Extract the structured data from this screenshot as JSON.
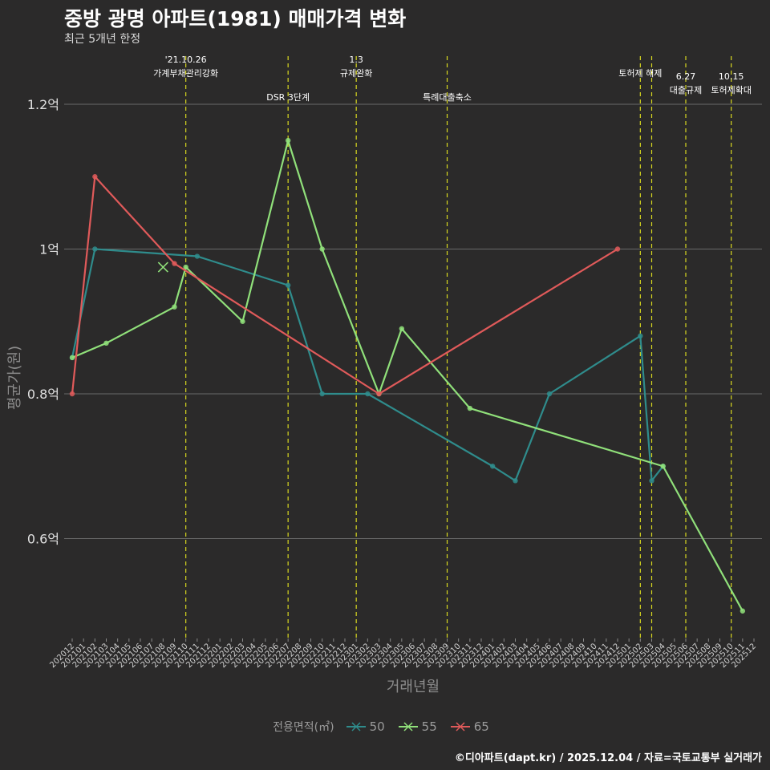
{
  "header": {
    "title": "중방 광명 아파트(1981) 매매가격 변화",
    "subtitle": "최근 5개년 한정"
  },
  "legend": {
    "title": "전용면적(㎡)"
  },
  "caption": "©디아파트(dapt.kr) / 2025.12.04 / 자료=국토교통부 실거래가",
  "chart_data": {
    "type": "line",
    "title": "중방 광명 아파트(1981) 매매가격 변화",
    "subtitle": "최근 5개년 한정",
    "xlabel": "거래년월",
    "ylabel": "평균가(원)",
    "ylim": [
      0.47,
      1.25
    ],
    "y_ticks": [
      {
        "value": 0.6,
        "label": "0.6억"
      },
      {
        "value": 0.8,
        "label": "0.8억"
      },
      {
        "value": 1.0,
        "label": "1억"
      },
      {
        "value": 1.2,
        "label": "1.2억"
      }
    ],
    "x_categories": [
      "202012",
      "202101",
      "202102",
      "202103",
      "202104",
      "202105",
      "202106",
      "202107",
      "202108",
      "202109",
      "202110",
      "202111",
      "202112",
      "202201",
      "202202",
      "202203",
      "202204",
      "202205",
      "202206",
      "202207",
      "202208",
      "202209",
      "202210",
      "202211",
      "202212",
      "202301",
      "202302",
      "202303",
      "202304",
      "202305",
      "202306",
      "202307",
      "202308",
      "202309",
      "202310",
      "202311",
      "202312",
      "202401",
      "202402",
      "202403",
      "202404",
      "202405",
      "202406",
      "202407",
      "202408",
      "202409",
      "202410",
      "202411",
      "202412",
      "202501",
      "202502",
      "202503",
      "202504",
      "202505",
      "202506",
      "202507",
      "202508",
      "202509",
      "202510",
      "202511",
      "202512"
    ],
    "series": [
      {
        "name": "50",
        "color": "#2f8c8c",
        "points": [
          [
            "202012",
            0.85
          ],
          [
            "202102",
            1.0
          ],
          [
            "202111",
            0.99
          ],
          [
            "202207",
            0.95
          ],
          [
            "202210",
            0.8
          ],
          [
            "202302",
            0.8
          ],
          [
            "202401",
            0.7
          ],
          [
            "202403",
            0.68
          ],
          [
            "202406",
            0.8
          ],
          [
            "202502",
            0.88
          ],
          [
            "202503",
            0.68
          ],
          [
            "202504",
            0.7
          ]
        ]
      },
      {
        "name": "55",
        "color": "#90e07a",
        "points": [
          [
            "202012",
            0.85
          ],
          [
            "202103",
            0.87
          ],
          [
            "202109",
            0.92
          ],
          [
            "202110",
            0.975
          ],
          [
            "202203",
            0.9
          ],
          [
            "202207",
            1.15
          ],
          [
            "202210",
            1.0
          ],
          [
            "202303",
            0.8
          ],
          [
            "202305",
            0.89
          ],
          [
            "202311",
            0.78
          ],
          [
            "202504",
            0.7
          ],
          [
            "202511",
            0.5
          ]
        ]
      },
      {
        "name": "65",
        "color": "#e05a5a",
        "points": [
          [
            "202012",
            0.8
          ],
          [
            "202102",
            1.1
          ],
          [
            "202109",
            0.98
          ],
          [
            "202303",
            0.8
          ],
          [
            "202412",
            1.0
          ]
        ]
      }
    ],
    "special_markers": [
      {
        "series": "55",
        "x": "202108",
        "y": 0.975,
        "shape": "x"
      }
    ],
    "annotations": [
      {
        "x": "202110",
        "lines": [
          "'21.10.26",
          "가계부채관리강화"
        ],
        "row": "top"
      },
      {
        "x": "202207",
        "lines": [
          "DSR 3단계"
        ],
        "row": "bottom"
      },
      {
        "x": "202301",
        "lines": [
          "1.3",
          "규제완화"
        ],
        "row": "top"
      },
      {
        "x": "202309",
        "lines": [
          "특례대출축소"
        ],
        "row": "bottom"
      },
      {
        "x": "202502",
        "lines": [
          "토허제 해제"
        ],
        "row": "top"
      },
      {
        "x": "202503",
        "lines": [],
        "row": "top"
      },
      {
        "x": "202506",
        "lines": [
          "6.27",
          "대출규제"
        ],
        "row": "lower"
      },
      {
        "x": "202510",
        "lines": [
          "10.15",
          "토허제확대"
        ],
        "row": "lower"
      }
    ]
  }
}
